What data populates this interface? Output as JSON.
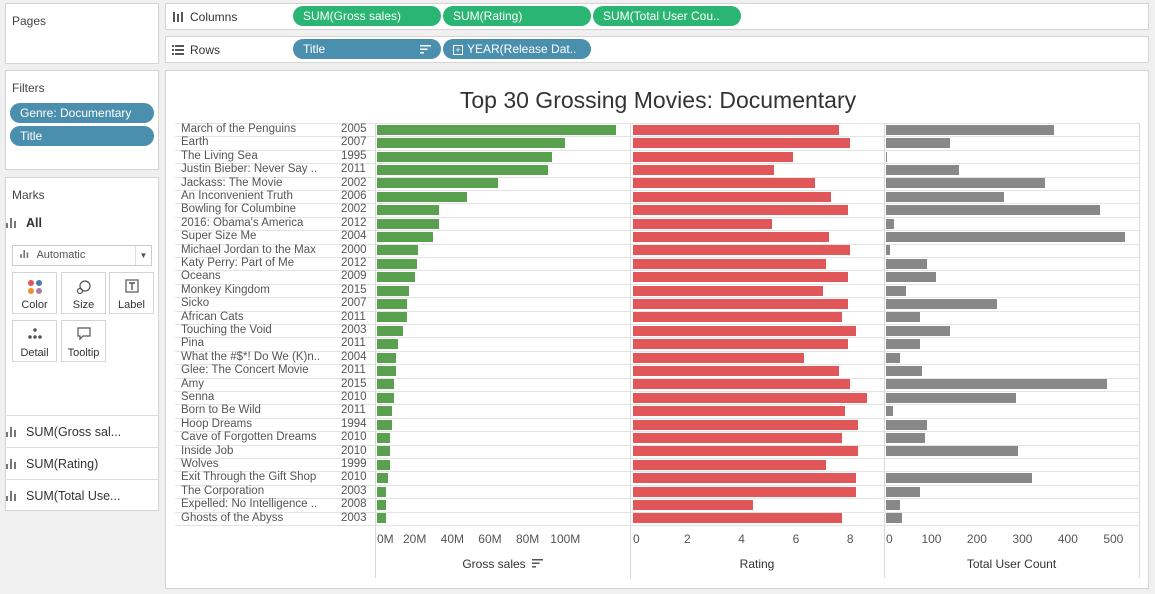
{
  "pages": {
    "title": "Pages"
  },
  "columns_shelf": {
    "label": "Columns",
    "pills": [
      "SUM(Gross sales)",
      "SUM(Rating)",
      "SUM(Total User Cou.."
    ]
  },
  "rows_shelf": {
    "label": "Rows",
    "pills": [
      "Title",
      "YEAR(Release Dat.."
    ]
  },
  "filters": {
    "title": "Filters",
    "pills": [
      "Genre: Documentary",
      "Title"
    ]
  },
  "marks": {
    "title": "Marks",
    "all_label": "All",
    "type_select": "Automatic",
    "cards": [
      "Color",
      "Size",
      "Label",
      "Detail",
      "Tooltip"
    ],
    "measures": [
      "SUM(Gross sal...",
      "SUM(Rating)",
      "SUM(Total Use..."
    ]
  },
  "view": {
    "title": "Top 30 Grossing Movies: Documentary"
  },
  "colors": {
    "gross": "#59a14f",
    "rating": "#e15759",
    "users": "#888888",
    "pill_green": "#2ab573",
    "pill_blue": "#4a8fad"
  },
  "chart_data": {
    "type": "bar",
    "title": "Top 30 Grossing Movies: Documentary",
    "rows": [
      {
        "title": "March of the Penguins",
        "year": "2005",
        "gross": 127,
        "rating": 7.6,
        "users": 370
      },
      {
        "title": "Earth",
        "year": "2007",
        "gross": 100,
        "rating": 8.0,
        "users": 140
      },
      {
        "title": "The Living Sea",
        "year": "1995",
        "gross": 93,
        "rating": 5.9,
        "users": 2
      },
      {
        "title": "Justin Bieber: Never Say ..",
        "year": "2011",
        "gross": 91,
        "rating": 5.2,
        "users": 160
      },
      {
        "title": "Jackass: The Movie",
        "year": "2002",
        "gross": 64,
        "rating": 6.7,
        "users": 350
      },
      {
        "title": "An Inconvenient Truth",
        "year": "2006",
        "gross": 48,
        "rating": 7.3,
        "users": 260
      },
      {
        "title": "Bowling for Columbine",
        "year": "2002",
        "gross": 33,
        "rating": 7.9,
        "users": 470
      },
      {
        "title": "2016: Obama's America",
        "year": "2012",
        "gross": 33,
        "rating": 5.1,
        "users": 18
      },
      {
        "title": "Super Size Me",
        "year": "2004",
        "gross": 30,
        "rating": 7.2,
        "users": 525
      },
      {
        "title": "Michael Jordan to the Max",
        "year": "2000",
        "gross": 22,
        "rating": 8.0,
        "users": 8
      },
      {
        "title": "Katy Perry: Part of Me",
        "year": "2012",
        "gross": 21,
        "rating": 7.1,
        "users": 90
      },
      {
        "title": "Oceans",
        "year": "2009",
        "gross": 20,
        "rating": 7.9,
        "users": 110
      },
      {
        "title": "Monkey Kingdom",
        "year": "2015",
        "gross": 17,
        "rating": 7.0,
        "users": 45
      },
      {
        "title": "Sicko",
        "year": "2007",
        "gross": 16,
        "rating": 7.9,
        "users": 245
      },
      {
        "title": "African Cats",
        "year": "2011",
        "gross": 16,
        "rating": 7.7,
        "users": 75
      },
      {
        "title": "Touching the Void",
        "year": "2003",
        "gross": 14,
        "rating": 8.2,
        "users": 140
      },
      {
        "title": "Pina",
        "year": "2011",
        "gross": 11,
        "rating": 7.9,
        "users": 75
      },
      {
        "title": "What the #$*! Do We (K)n..",
        "year": "2004",
        "gross": 10,
        "rating": 6.3,
        "users": 30
      },
      {
        "title": "Glee: The Concert Movie",
        "year": "2011",
        "gross": 10,
        "rating": 7.6,
        "users": 80
      },
      {
        "title": "Amy",
        "year": "2015",
        "gross": 9,
        "rating": 8.0,
        "users": 485
      },
      {
        "title": "Senna",
        "year": "2010",
        "gross": 9,
        "rating": 8.6,
        "users": 285
      },
      {
        "title": "Born to Be Wild",
        "year": "2011",
        "gross": 8,
        "rating": 7.8,
        "users": 15
      },
      {
        "title": "Hoop Dreams",
        "year": "1994",
        "gross": 8,
        "rating": 8.3,
        "users": 90
      },
      {
        "title": "Cave of Forgotten Dreams",
        "year": "2010",
        "gross": 7,
        "rating": 7.7,
        "users": 85
      },
      {
        "title": "Inside Job",
        "year": "2010",
        "gross": 7,
        "rating": 8.3,
        "users": 290
      },
      {
        "title": "Wolves",
        "year": "1999",
        "gross": 7,
        "rating": 7.1,
        "users": 0
      },
      {
        "title": "Exit Through the Gift Shop",
        "year": "2010",
        "gross": 6,
        "rating": 8.2,
        "users": 320
      },
      {
        "title": "The Corporation",
        "year": "2003",
        "gross": 5,
        "rating": 8.2,
        "users": 75
      },
      {
        "title": "Expelled: No Intelligence ..",
        "year": "2008",
        "gross": 5,
        "rating": 4.4,
        "users": 30
      },
      {
        "title": "Ghosts of the Abyss",
        "year": "2003",
        "gross": 5,
        "rating": 7.7,
        "users": 35
      }
    ],
    "axes": [
      {
        "title": "Gross sales",
        "ticks": [
          "0M",
          "20M",
          "40M",
          "60M",
          "80M",
          "100M"
        ],
        "tick_values": [
          0,
          20,
          40,
          60,
          80,
          100
        ],
        "range": [
          0,
          128
        ]
      },
      {
        "title": "Rating",
        "ticks": [
          "0",
          "2",
          "4",
          "6",
          "8"
        ],
        "tick_values": [
          0,
          2,
          4,
          6,
          8
        ],
        "range": [
          0,
          8.8
        ]
      },
      {
        "title": "Total User Count",
        "ticks": [
          "0",
          "100",
          "200",
          "300",
          "400",
          "500"
        ],
        "tick_values": [
          0,
          100,
          200,
          300,
          400,
          500
        ],
        "range": [
          0,
          530
        ]
      }
    ],
    "sort": "Gross sales descending"
  }
}
